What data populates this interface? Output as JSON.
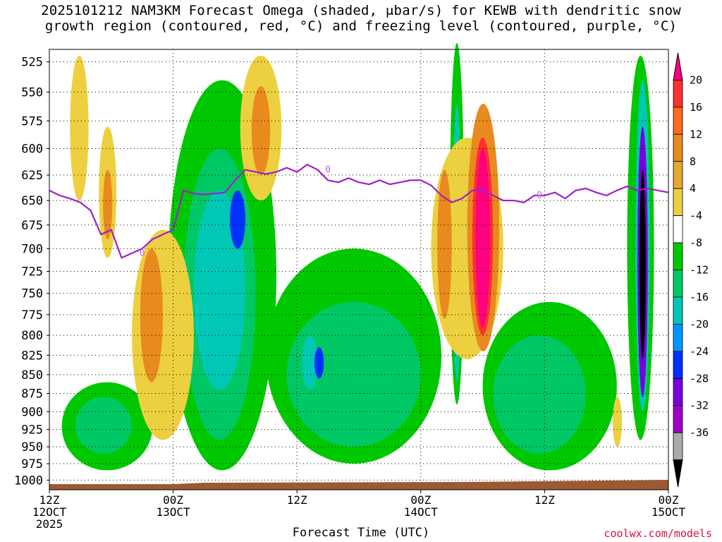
{
  "title_line1": "2025101212 NAM3KM Forecast Omega (shaded, μbar/s) for KEWB with dendritic snow",
  "title_line2": "growth region (contoured, red, °C) and freezing level (contoured, purple, °C)",
  "credit": "coolwx.com/models",
  "chart_data": {
    "type": "heatmap",
    "xlabel": "Forecast Time (UTC)",
    "ylabel": "",
    "x_ticks": [
      {
        "hour": 0,
        "lines": [
          "12Z",
          "12OCT",
          "2025"
        ]
      },
      {
        "hour": 12,
        "lines": [
          "00Z",
          "13OCT"
        ]
      },
      {
        "hour": 24,
        "lines": [
          "12Z"
        ]
      },
      {
        "hour": 36,
        "lines": [
          "00Z",
          "14OCT"
        ]
      },
      {
        "hour": 48,
        "lines": [
          "12Z"
        ]
      },
      {
        "hour": 60,
        "lines": [
          "00Z",
          "15OCT"
        ]
      }
    ],
    "xlim": [
      0,
      60
    ],
    "y_ticks": [
      525,
      550,
      575,
      600,
      625,
      650,
      675,
      700,
      725,
      750,
      775,
      800,
      825,
      850,
      875,
      900,
      925,
      950,
      975,
      1000
    ],
    "ylim": [
      1015,
      515
    ],
    "y_scale": "log-pressure",
    "colorbar": {
      "labels": [
        "20",
        "16",
        "12",
        "8",
        "4",
        "-4",
        "-8",
        "-12",
        "-16",
        "-20",
        "-24",
        "-28",
        "-32",
        "-36"
      ],
      "colors": [
        "#ff0080",
        "#ff3030",
        "#ff6a1e",
        "#e98a1e",
        "#e5a831",
        "#ecd040",
        "#ffffff",
        "#00c800",
        "#00c864",
        "#00c8b4",
        "#0096ff",
        "#0032ff",
        "#7800dc",
        "#a000c8",
        "#aaaaaa",
        "#000000"
      ]
    },
    "freezing_level": {
      "color": "#a020c8",
      "label": "0",
      "hours": [
        0,
        1,
        2,
        3,
        4,
        5,
        6,
        7,
        8,
        9,
        10,
        11,
        12,
        13,
        14,
        15,
        16,
        17,
        18,
        19,
        20,
        21,
        22,
        23,
        24,
        25,
        26,
        27,
        28,
        29,
        30,
        31,
        32,
        33,
        34,
        35,
        36,
        37,
        38,
        39,
        40,
        41,
        42,
        43,
        44,
        45,
        46,
        47,
        48,
        49,
        50,
        51,
        52,
        53,
        54,
        55,
        56,
        57,
        58,
        59,
        60
      ],
      "pressure": [
        640,
        645,
        648,
        652,
        660,
        685,
        680,
        710,
        705,
        700,
        690,
        685,
        680,
        640,
        643,
        644,
        643,
        642,
        630,
        620,
        622,
        624,
        622,
        618,
        622,
        615,
        620,
        630,
        632,
        628,
        632,
        634,
        630,
        634,
        632,
        630,
        630,
        635,
        645,
        652,
        648,
        640,
        640,
        645,
        650,
        650,
        652,
        645,
        645,
        642,
        648,
        640,
        638,
        642,
        645,
        640,
        636,
        640,
        638,
        640,
        642
      ]
    },
    "features": [
      {
        "name": "omega-band-day1",
        "hours": [
          2,
          10
        ],
        "pressure_top": 550,
        "pressure_bottom": 980,
        "min": -16,
        "max": 8
      },
      {
        "name": "omega-strong-core",
        "hours": [
          39,
          41
        ],
        "pressure_top": 600,
        "pressure_bottom": 780,
        "min": -36,
        "max": 20
      },
      {
        "name": "omega-late-core",
        "hours": [
          57,
          58
        ],
        "pressure_top": 520,
        "pressure_bottom": 880,
        "min": -36,
        "max": 0
      }
    ]
  }
}
